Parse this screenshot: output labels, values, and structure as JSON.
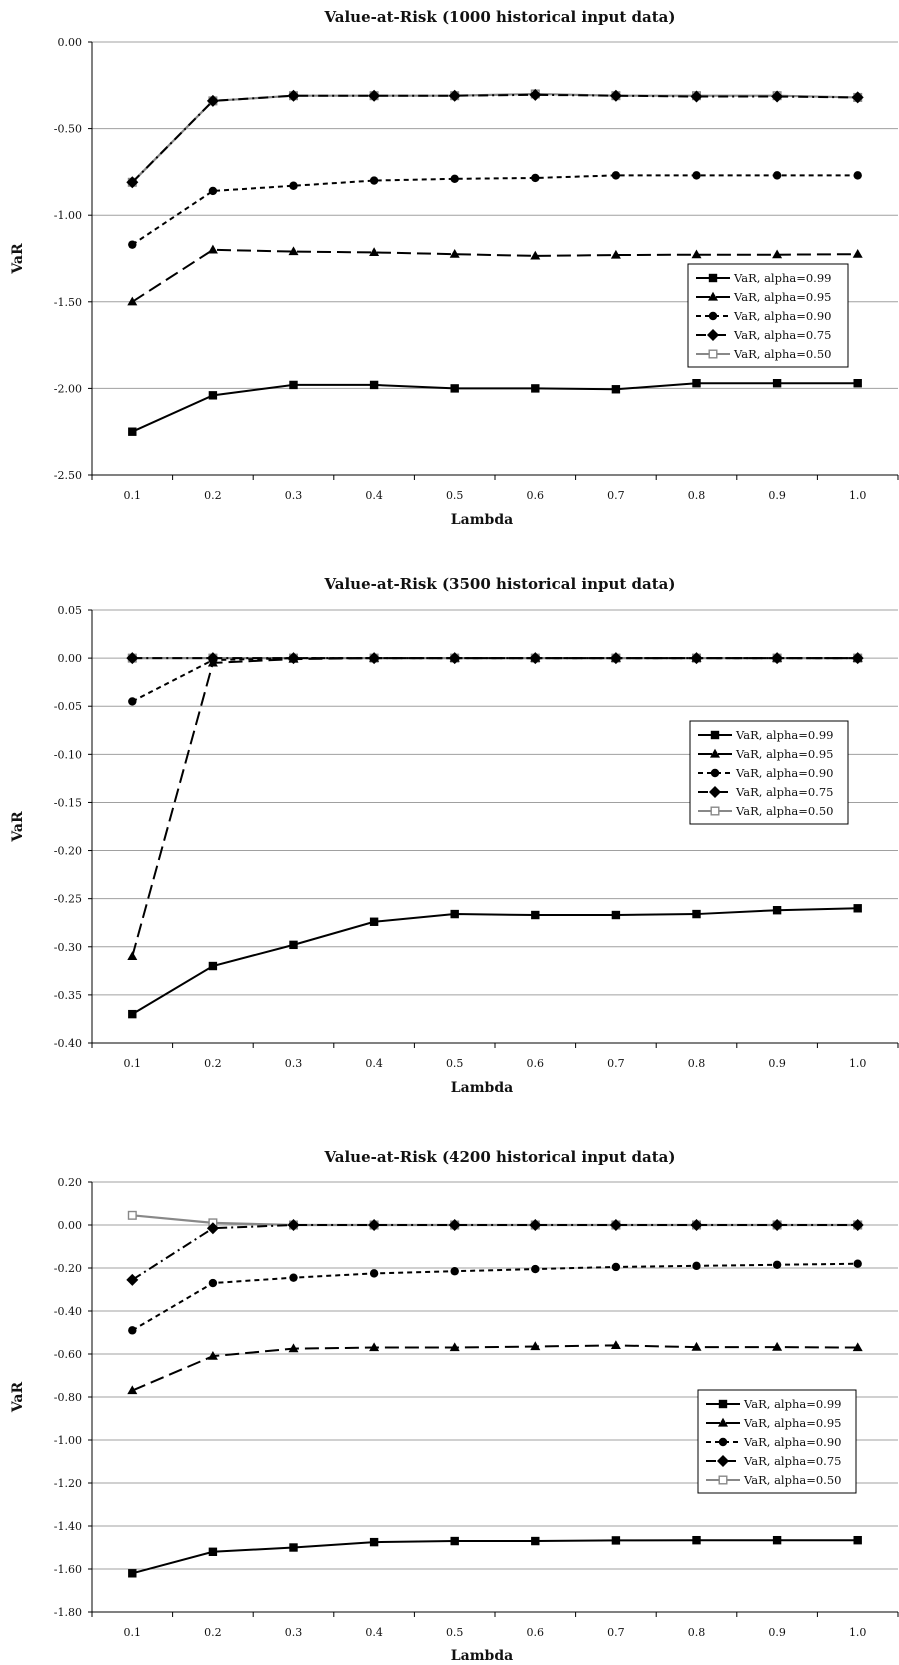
{
  "chart_data": [
    {
      "type": "line",
      "title": "Value-at-Risk (1000 historical input data)",
      "xlabel": "Lambda",
      "ylabel": "VaR",
      "x": [
        "0.1",
        "0.2",
        "0.3",
        "0.4",
        "0.5",
        "0.6",
        "0.7",
        "0.8",
        "0.9",
        "1.0"
      ],
      "ylim": [
        -2.5,
        0.0
      ],
      "yticks": [
        "0.00",
        "-0.50",
        "-1.00",
        "-1.50",
        "-2.00",
        "-2.50"
      ],
      "grid": true,
      "legend_position": "right",
      "series": [
        {
          "name": "VaR, alpha=0.99",
          "values": [
            -2.25,
            -2.04,
            -1.98,
            -1.98,
            -2.0,
            -2.0,
            -2.005,
            -1.97,
            -1.97,
            -1.97
          ]
        },
        {
          "name": "VaR, alpha=0.95",
          "values": [
            -1.5,
            -1.2,
            -1.21,
            -1.215,
            -1.225,
            -1.235,
            -1.23,
            -1.228,
            -1.228,
            -1.225
          ]
        },
        {
          "name": "VaR, alpha=0.90",
          "values": [
            -1.17,
            -0.86,
            -0.83,
            -0.8,
            -0.79,
            -0.785,
            -0.77,
            -0.77,
            -0.77,
            -0.77
          ]
        },
        {
          "name": "VaR, alpha=0.75",
          "values": [
            -0.81,
            -0.34,
            -0.31,
            -0.31,
            -0.31,
            -0.305,
            -0.31,
            -0.315,
            -0.315,
            -0.32
          ]
        },
        {
          "name": "VaR, alpha=0.50",
          "values": [
            -0.81,
            -0.34,
            -0.31,
            -0.31,
            -0.31,
            -0.3,
            -0.31,
            -0.31,
            -0.31,
            -0.32
          ]
        }
      ]
    },
    {
      "type": "line",
      "title": "Value-at-Risk (3500 historical input data)",
      "xlabel": "Lambda",
      "ylabel": "VaR",
      "x": [
        "0.1",
        "0.2",
        "0.3",
        "0.4",
        "0.5",
        "0.6",
        "0.7",
        "0.8",
        "0.9",
        "1.0"
      ],
      "ylim": [
        -0.4,
        0.05
      ],
      "yticks": [
        "0.05",
        "0.00",
        "-0.05",
        "-0.10",
        "-0.15",
        "-0.20",
        "-0.25",
        "-0.30",
        "-0.35",
        "-0.40"
      ],
      "grid": true,
      "legend_position": "right",
      "series": [
        {
          "name": "VaR, alpha=0.99",
          "values": [
            -0.37,
            -0.32,
            -0.298,
            -0.274,
            -0.266,
            -0.267,
            -0.267,
            -0.266,
            -0.262,
            -0.26
          ]
        },
        {
          "name": "VaR, alpha=0.95",
          "values": [
            -0.31,
            -0.005,
            -0.001,
            0.0,
            0.0,
            0.0,
            0.0,
            0.0,
            0.0,
            0.0
          ]
        },
        {
          "name": "VaR, alpha=0.90",
          "values": [
            -0.045,
            -0.002,
            0.0,
            0.0,
            0.0,
            0.0,
            0.0,
            0.0,
            0.0,
            0.0
          ]
        },
        {
          "name": "VaR, alpha=0.75",
          "values": [
            0.0,
            0.0,
            0.0,
            0.0,
            0.0,
            0.0,
            0.0,
            0.0,
            0.0,
            0.0
          ]
        },
        {
          "name": "VaR, alpha=0.50",
          "values": [
            0.0,
            0.0,
            0.0,
            0.0,
            0.0,
            0.0,
            0.0,
            0.0,
            0.0,
            0.0
          ]
        }
      ]
    },
    {
      "type": "line",
      "title": "Value-at-Risk (4200 historical input data)",
      "xlabel": "Lambda",
      "ylabel": "VaR",
      "x": [
        "0.1",
        "0.2",
        "0.3",
        "0.4",
        "0.5",
        "0.6",
        "0.7",
        "0.8",
        "0.9",
        "1.0"
      ],
      "ylim": [
        -1.8,
        0.2
      ],
      "yticks": [
        "0.20",
        "0.00",
        "-0.20",
        "-0.40",
        "-0.60",
        "-0.80",
        "-1.00",
        "-1.20",
        "-1.40",
        "-1.60",
        "-1.80"
      ],
      "grid": true,
      "legend_position": "right",
      "series": [
        {
          "name": "VaR, alpha=0.99",
          "values": [
            -1.62,
            -1.52,
            -1.5,
            -1.475,
            -1.47,
            -1.47,
            -1.467,
            -1.466,
            -1.466,
            -1.466
          ]
        },
        {
          "name": "VaR, alpha=0.95",
          "values": [
            -0.77,
            -0.61,
            -0.575,
            -0.57,
            -0.57,
            -0.565,
            -0.56,
            -0.568,
            -0.568,
            -0.57
          ]
        },
        {
          "name": "VaR, alpha=0.90",
          "values": [
            -0.49,
            -0.27,
            -0.245,
            -0.225,
            -0.215,
            -0.205,
            -0.195,
            -0.19,
            -0.185,
            -0.18
          ]
        },
        {
          "name": "VaR, alpha=0.75",
          "values": [
            -0.255,
            -0.015,
            0.0,
            0.0,
            0.0,
            0.0,
            0.0,
            0.0,
            0.0,
            0.0
          ]
        },
        {
          "name": "VaR, alpha=0.50",
          "values": [
            0.045,
            0.01,
            0.0,
            0.0,
            0.0,
            0.0,
            0.0,
            0.0,
            0.0,
            0.0
          ]
        }
      ]
    }
  ],
  "series_styles": [
    {
      "color": "#000000",
      "dash": "",
      "marker": "square-marker"
    },
    {
      "color": "#000000",
      "dash": "14 6",
      "marker": "triangle-marker"
    },
    {
      "color": "#000000",
      "dash": "5 4",
      "marker": "circle-marker"
    },
    {
      "color": "#000000",
      "dash": "10 4 2 4",
      "marker": "diamond-marker"
    },
    {
      "color": "#888888",
      "dash": "",
      "marker": "hollow-square-marker"
    }
  ]
}
